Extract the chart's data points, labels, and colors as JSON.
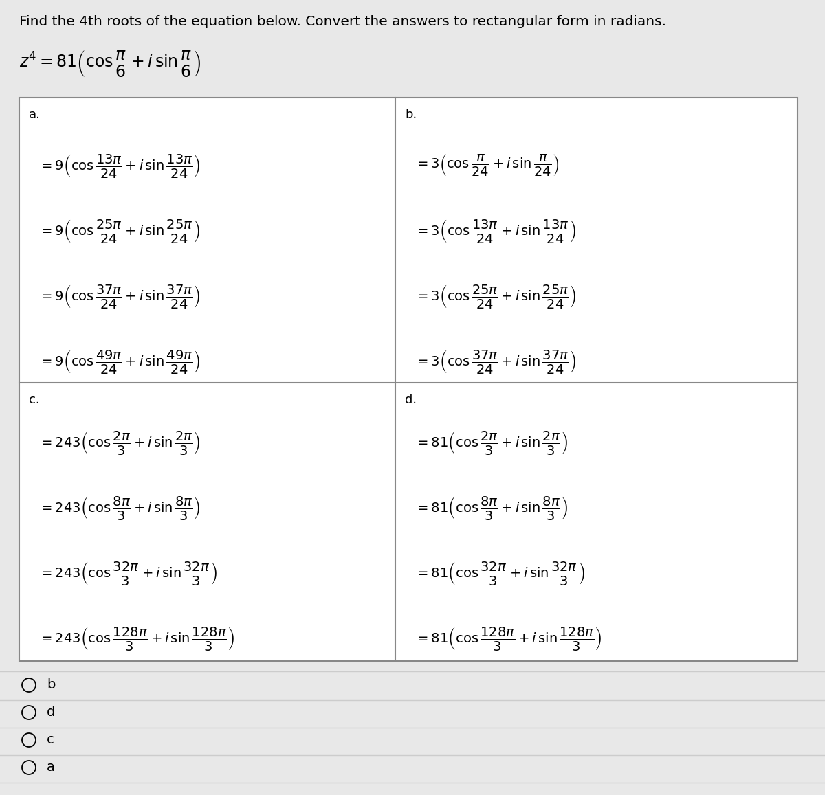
{
  "title": "Find the 4th roots of the equation below. Convert the answers to rectangular form in radians.",
  "bg_color": "#e8e8e8",
  "box_bg": "#ffffff",
  "cell_a_label": "a.",
  "cell_b_label": "b.",
  "cell_c_label": "c.",
  "cell_d_label": "d.",
  "cell_a_lines": [
    "= 9\\left(\\cos\\dfrac{13\\pi}{24} + i\\,\\sin\\dfrac{13\\pi}{24}\\right)",
    "= 9\\left(\\cos\\dfrac{25\\pi}{24} + i\\,\\sin\\dfrac{25\\pi}{24}\\right)",
    "= 9\\left(\\cos\\dfrac{37\\pi}{24} + i\\,\\sin\\dfrac{37\\pi}{24}\\right)",
    "= 9\\left(\\cos\\dfrac{49\\pi}{24} + i\\,\\sin\\dfrac{49\\pi}{24}\\right)"
  ],
  "cell_b_lines": [
    "= 3\\left(\\cos\\dfrac{\\pi}{24} + i\\,\\sin\\dfrac{\\pi}{24}\\right)",
    "= 3\\left(\\cos\\dfrac{13\\pi}{24} + i\\,\\sin\\dfrac{13\\pi}{24}\\right)",
    "= 3\\left(\\cos\\dfrac{25\\pi}{24} + i\\,\\sin\\dfrac{25\\pi}{24}\\right)",
    "= 3\\left(\\cos\\dfrac{37\\pi}{24} + i\\,\\sin\\dfrac{37\\pi}{24}\\right)"
  ],
  "cell_c_lines": [
    "= 243\\left(\\cos\\dfrac{2\\pi}{3} + i\\,\\sin\\dfrac{2\\pi}{3}\\right)",
    "= 243\\left(\\cos\\dfrac{8\\pi}{3} + i\\,\\sin\\dfrac{8\\pi}{3}\\right)",
    "= 243\\left(\\cos\\dfrac{32\\pi}{3} + i\\,\\sin\\dfrac{32\\pi}{3}\\right)",
    "= 243\\left(\\cos\\dfrac{128\\pi}{3} + i\\,\\sin\\dfrac{128\\pi}{3}\\right)"
  ],
  "cell_d_lines": [
    "= 81\\left(\\cos\\dfrac{2\\pi}{3} + i\\,\\sin\\dfrac{2\\pi}{3}\\right)",
    "= 81\\left(\\cos\\dfrac{8\\pi}{3} + i\\,\\sin\\dfrac{8\\pi}{3}\\right)",
    "= 81\\left(\\cos\\dfrac{32\\pi}{3} + i\\,\\sin\\dfrac{32\\pi}{3}\\right)",
    "= 81\\left(\\cos\\dfrac{128\\pi}{3} + i\\,\\sin\\dfrac{128\\pi}{3}\\right)"
  ],
  "radio_options": [
    "b",
    "d",
    "c",
    "a"
  ],
  "title_fontsize": 14.5,
  "equation_fontsize": 17,
  "cell_label_fontsize": 13,
  "cell_content_fontsize": 14,
  "radio_fontsize": 14
}
